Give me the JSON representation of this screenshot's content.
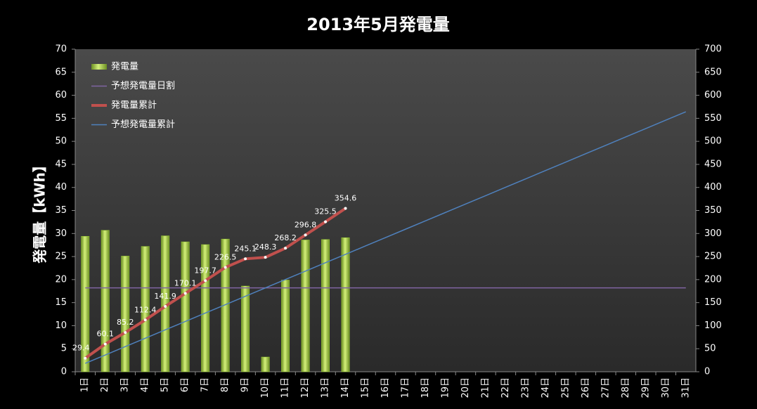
{
  "chart_data": {
    "type": "bar",
    "title": "2013年5月発電量",
    "y_axis_label": "発電量【kWh】",
    "categories": [
      "1日",
      "2日",
      "3日",
      "4日",
      "5日",
      "6日",
      "7日",
      "8日",
      "9日",
      "10日",
      "11日",
      "12日",
      "13日",
      "14日",
      "15日",
      "16日",
      "17日",
      "18日",
      "19日",
      "20日",
      "21日",
      "22日",
      "23日",
      "24日",
      "25日",
      "26日",
      "27日",
      "28日",
      "29日",
      "30日",
      "31日"
    ],
    "ylim": [
      0,
      70
    ],
    "yticks": [
      0,
      5,
      10,
      15,
      20,
      25,
      30,
      35,
      40,
      45,
      50,
      55,
      60,
      65,
      70
    ],
    "y2lim": [
      0,
      700
    ],
    "y2ticks": [
      0,
      50,
      100,
      150,
      200,
      250,
      300,
      350,
      400,
      450,
      500,
      550,
      600,
      650,
      700
    ],
    "grid": false,
    "legend": "top-left",
    "series": [
      {
        "name": "発電量",
        "type": "bar",
        "color": "#9acd32",
        "values": [
          29.4,
          30.7,
          25.1,
          27.2,
          29.5,
          28.2,
          27.6,
          28.8,
          18.6,
          3.2,
          19.9,
          28.6,
          28.7,
          29.1,
          null,
          null,
          null,
          null,
          null,
          null,
          null,
          null,
          null,
          null,
          null,
          null,
          null,
          null,
          null,
          null,
          null
        ]
      },
      {
        "name": "予想発電量日割",
        "type": "line",
        "color": "#8064a2",
        "values": [
          18.2,
          18.2,
          18.2,
          18.2,
          18.2,
          18.2,
          18.2,
          18.2,
          18.2,
          18.2,
          18.2,
          18.2,
          18.2,
          18.2,
          18.2,
          18.2,
          18.2,
          18.2,
          18.2,
          18.2,
          18.2,
          18.2,
          18.2,
          18.2,
          18.2,
          18.2,
          18.2,
          18.2,
          18.2,
          18.2,
          18.2
        ]
      },
      {
        "name": "発電量累計",
        "type": "line",
        "axis": "y2",
        "color": "#c0504d",
        "values": [
          29.4,
          60.1,
          85.2,
          112.4,
          141.9,
          170.1,
          197.7,
          226.5,
          245.1,
          248.3,
          268.2,
          296.8,
          325.5,
          354.6,
          null,
          null,
          null,
          null,
          null,
          null,
          null,
          null,
          null,
          null,
          null,
          null,
          null,
          null,
          null,
          null,
          null
        ]
      },
      {
        "name": "予想発電量累計",
        "type": "line",
        "axis": "y2",
        "color": "#4f81bd",
        "values": [
          18.2,
          36.4,
          54.6,
          72.8,
          91,
          109.2,
          127.4,
          145.6,
          163.8,
          182,
          200.2,
          218.4,
          236.6,
          254.8,
          273,
          291.2,
          309.4,
          327.6,
          345.8,
          364,
          382.2,
          400.4,
          418.6,
          436.8,
          455,
          473.2,
          491.4,
          509.6,
          527.8,
          546,
          564.2
        ]
      }
    ]
  }
}
